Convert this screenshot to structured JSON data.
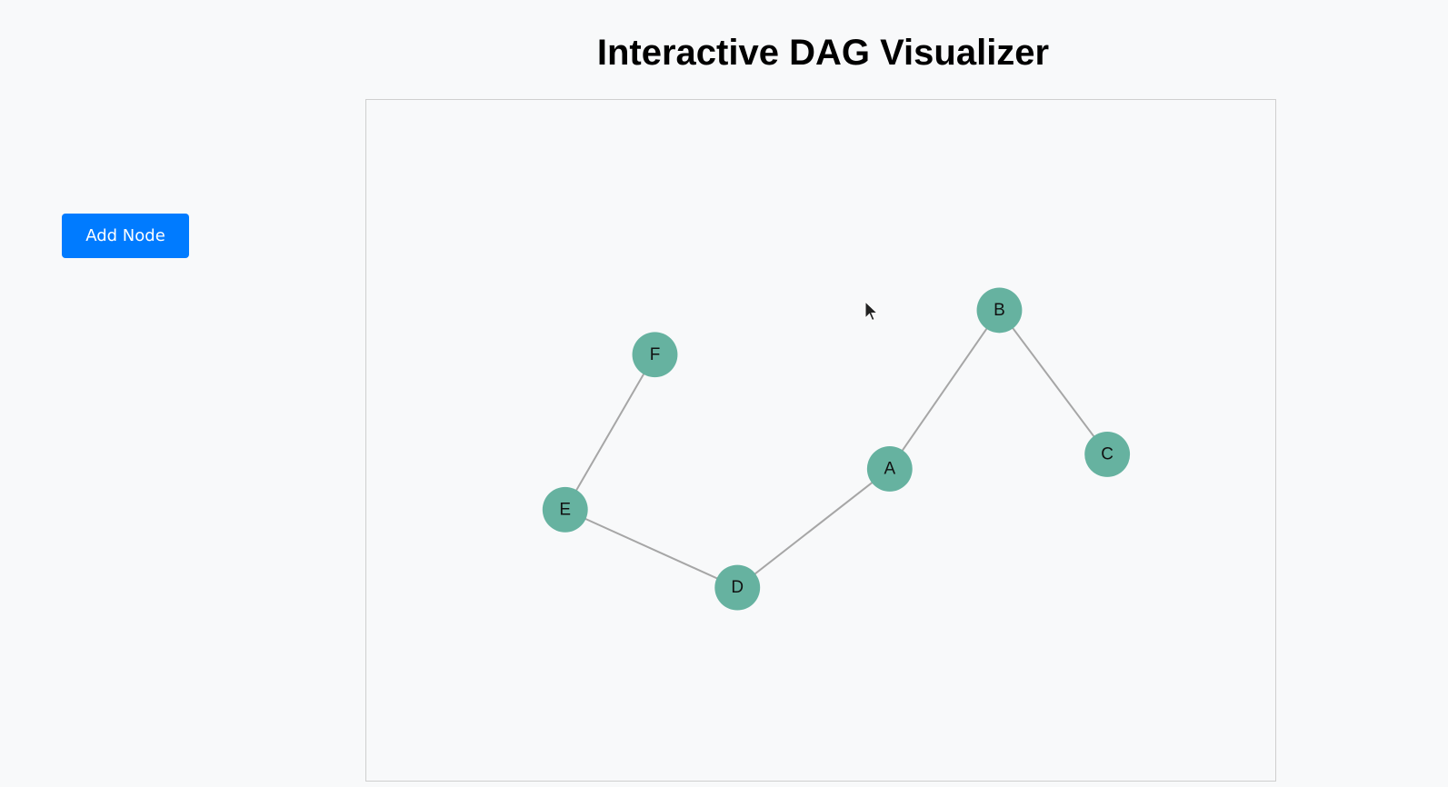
{
  "page": {
    "title": "Interactive DAG Visualizer"
  },
  "toolbar": {
    "add_node_label": "Add Node"
  },
  "colors": {
    "background": "#f8f9fa",
    "button": "#007bff",
    "node_fill": "#66b2a0",
    "edge": "#a6a6a6"
  },
  "graph": {
    "nodes": [
      {
        "id": "A",
        "label": "A"
      },
      {
        "id": "B",
        "label": "B"
      },
      {
        "id": "C",
        "label": "C"
      },
      {
        "id": "D",
        "label": "D"
      },
      {
        "id": "E",
        "label": "E"
      },
      {
        "id": "F",
        "label": "F"
      }
    ],
    "edges": [
      {
        "from": "A",
        "to": "B"
      },
      {
        "from": "B",
        "to": "C"
      },
      {
        "from": "D",
        "to": "A"
      },
      {
        "from": "E",
        "to": "D"
      },
      {
        "from": "F",
        "to": "E"
      }
    ]
  }
}
